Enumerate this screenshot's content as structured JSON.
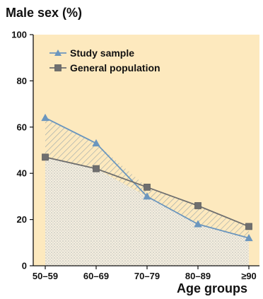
{
  "chart_data": {
    "type": "line",
    "ylabel": "Male sex (%)",
    "xlabel": "Age groups",
    "categories": [
      "50–59",
      "60–69",
      "70–79",
      "80–89",
      "≥90"
    ],
    "ylim": [
      0,
      100
    ],
    "yticks": [
      "0",
      "20",
      "40",
      "60",
      "80",
      "100"
    ],
    "legend_position": "top-left",
    "series": [
      {
        "name": "Study sample",
        "values": [
          64,
          53,
          30,
          18,
          12
        ],
        "color": "#6b96be",
        "marker": "triangle"
      },
      {
        "name": "General population",
        "values": [
          47,
          42,
          34,
          26,
          17
        ],
        "color": "#6f6f6f",
        "marker": "square"
      }
    ],
    "colors": {
      "background": "#fde9be",
      "study_hatch": "#5e7f9e",
      "population_hatch": "#7a7464",
      "axis": "#111111"
    }
  }
}
